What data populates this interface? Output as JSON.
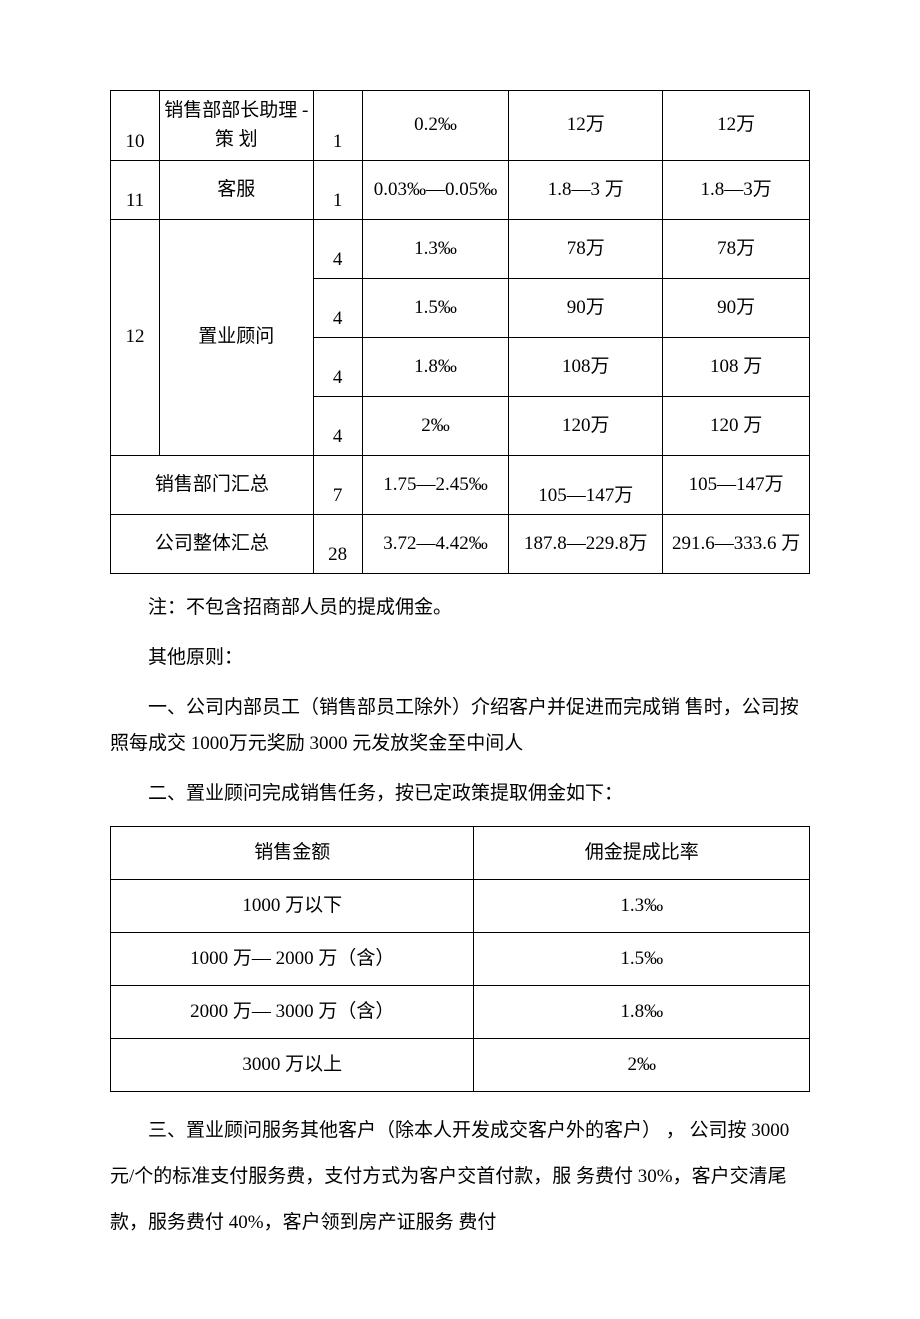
{
  "table1": {
    "rows": [
      {
        "idx": "10",
        "role": "销售部部长助理 -策 划",
        "cnt": "1",
        "pct": "0.2‰",
        "a1": "12万",
        "a2": "12万",
        "rowspan": 1
      },
      {
        "idx": "11",
        "role": "客服",
        "cnt": "1",
        "pct": "0.03‰—0.05‰",
        "a1": "1.8—3 万",
        "a2": "1.8—3万",
        "rowspan": 1
      }
    ],
    "row12": {
      "idx": "12",
      "role": "置业顾问",
      "sub": [
        {
          "cnt": "4",
          "pct": "1.3‰",
          "a1": "78万",
          "a2": "78万"
        },
        {
          "cnt": "4",
          "pct": "1.5‰",
          "a1": "90万",
          "a2": "90万"
        },
        {
          "cnt": "4",
          "pct": "1.8‰",
          "a1": "108万",
          "a2": "108 万"
        },
        {
          "cnt": "4",
          "pct": "2‰",
          "a1": "120万",
          "a2": "120 万"
        }
      ]
    },
    "totals": [
      {
        "label": "销售部门汇总",
        "cnt": "7",
        "pct": "1.75—2.45‰",
        "a1": "105—147万",
        "a2": "105—147万"
      },
      {
        "label": "公司整体汇总",
        "cnt": "28",
        "pct": "3.72—4.42‰",
        "a1": "187.8—229.8万",
        "a2": "291.6—333.6 万"
      }
    ]
  },
  "notes": {
    "note1": "注：不包含招商部人员的提成佣金。",
    "other_label": "其他原则：",
    "p1": "一、公司内部员工（销售部员工除外）介绍客户并促进而完成销 售时，公司按照每成交 1000万元奖励 3000 元发放奖金至中间人",
    "p2": "二、置业顾问完成销售任务，按已定政策提取佣金如下：",
    "p3": "三、置业顾问服务其他客户（除本人开发成交客户外的客户） ， 公司按 3000 元/个的标准支付服务费，支付方式为客户交首付款，服 务费付 30%，客户交清尾款，服务费付 40%，客户领到房产证服务 费付"
  },
  "table2": {
    "header": {
      "c1": "销售金额",
      "c2": "佣金提成比率"
    },
    "rows": [
      {
        "c1": "1000 万以下",
        "c2": "1.3‰"
      },
      {
        "c1": "1000 万— 2000 万（含）",
        "c2": "1.5‰"
      },
      {
        "c1": "2000 万— 3000 万（含）",
        "c2": "1.8‰"
      },
      {
        "c1": "3000 万以上",
        "c2": "2‰"
      }
    ],
    "col1_width": "52%",
    "col2_width": "48%"
  }
}
